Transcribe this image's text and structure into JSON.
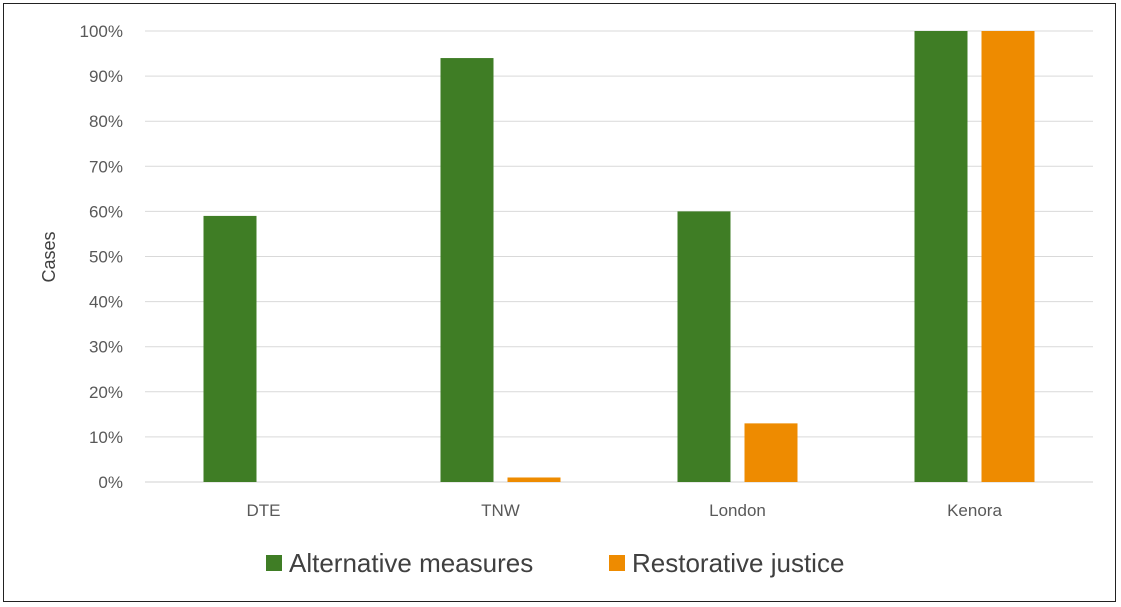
{
  "chart_data": {
    "type": "bar",
    "title": "",
    "xlabel": "",
    "ylabel": "Cases",
    "ylim": [
      0,
      100
    ],
    "y_ticks": [
      "0%",
      "10%",
      "20%",
      "30%",
      "40%",
      "50%",
      "60%",
      "70%",
      "80%",
      "90%",
      "100%"
    ],
    "y_tick_step": 10,
    "grid": "horizontal",
    "legend_position": "bottom",
    "categories": [
      "DTE",
      "TNW",
      "London",
      "Kenora"
    ],
    "series": [
      {
        "name": "Alternative measures",
        "color": "#3f7d25",
        "values": [
          59,
          94,
          60,
          100
        ]
      },
      {
        "name": "Restorative justice",
        "color": "#ee8b00",
        "values": [
          0,
          1,
          13,
          100
        ]
      }
    ]
  }
}
